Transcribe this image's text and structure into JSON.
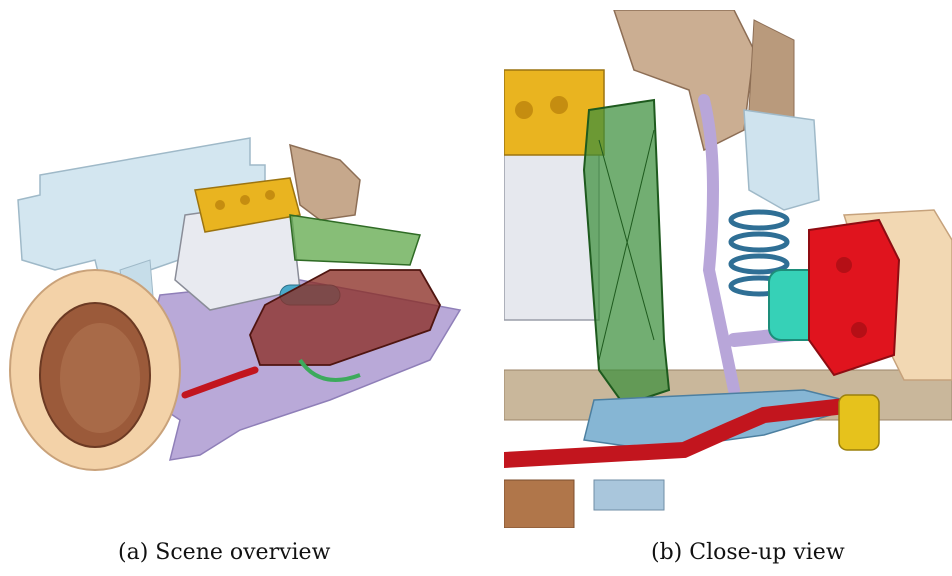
{
  "figure": {
    "panels": [
      {
        "id": "a",
        "caption": "(a) Scene overview"
      },
      {
        "id": "b",
        "caption": "(b) Close-up view"
      }
    ]
  },
  "colors": {
    "tire": "#f3d2a8",
    "rim": "#9b5a3a",
    "engine_block": "#e7e9ef",
    "cylinder_head": "#e9b420",
    "frame": "#cfe3ee",
    "battery_cover": "#8c2f26",
    "skid_plate": "#b8a8d6",
    "radiator": "#3c8f3c",
    "caliper": "#e0141e",
    "hub": "#36d1b7",
    "stabilizer_bar": "#c2151e",
    "bracket": "#c8a98a"
  }
}
